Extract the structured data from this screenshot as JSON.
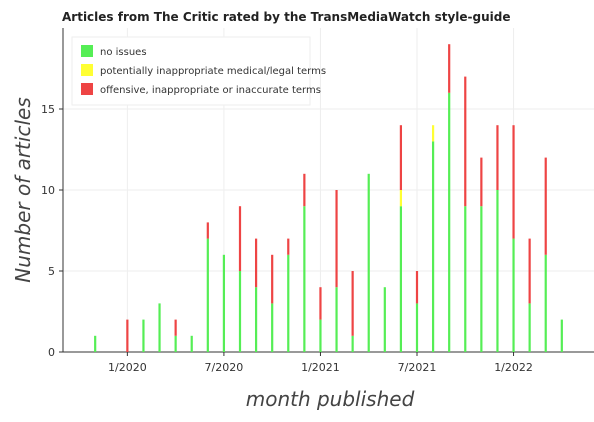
{
  "chart_data": {
    "type": "bar",
    "stacked": true,
    "title": "Articles from The Critic rated by the TransMediaWatch style-guide",
    "xlabel": "month published",
    "ylabel": "Number of articles",
    "ylim": [
      0,
      20
    ],
    "y_ticks": [
      0,
      5,
      10,
      15
    ],
    "x_ticks": [
      {
        "date": "2020-01",
        "label": "1/2020"
      },
      {
        "date": "2020-07",
        "label": "7/2020"
      },
      {
        "date": "2021-01",
        "label": "1/2021"
      },
      {
        "date": "2021-07",
        "label": "7/2021"
      },
      {
        "date": "2022-01",
        "label": "1/2022"
      }
    ],
    "x_range": [
      "2019-09",
      "2022-06"
    ],
    "grid": true,
    "legend_position": "top-left",
    "x": [
      "2019-11",
      "2020-01",
      "2020-02",
      "2020-03",
      "2020-04",
      "2020-05",
      "2020-06",
      "2020-07",
      "2020-08",
      "2020-09",
      "2020-10",
      "2020-11",
      "2020-12",
      "2021-01",
      "2021-02",
      "2021-03",
      "2021-04",
      "2021-05",
      "2021-06",
      "2021-07",
      "2021-08",
      "2021-09",
      "2021-10",
      "2021-11",
      "2021-12",
      "2022-01",
      "2022-02",
      "2022-03",
      "2022-04"
    ],
    "series": [
      {
        "name": "no issues",
        "color": "#55ee55",
        "values": [
          1,
          0,
          2,
          3,
          1,
          1,
          7,
          6,
          5,
          4,
          3,
          6,
          9,
          2,
          4,
          1,
          11,
          4,
          9,
          3,
          13,
          16,
          9,
          9,
          10,
          7,
          3,
          6,
          2
        ]
      },
      {
        "name": "potentially inappropriate medical/legal terms",
        "color": "#ffff33",
        "values": [
          0,
          0,
          0,
          0,
          0,
          0,
          0,
          0,
          0,
          0,
          0,
          0,
          0,
          0,
          0,
          0,
          0,
          0,
          1,
          0,
          1,
          0,
          0,
          0,
          0,
          0,
          0,
          0,
          0
        ]
      },
      {
        "name": "offensive, inappropriate or inaccurate terms",
        "color": "#ee4444",
        "values": [
          0,
          2,
          0,
          0,
          1,
          0,
          1,
          0,
          4,
          3,
          3,
          1,
          2,
          2,
          6,
          4,
          0,
          0,
          4,
          2,
          0,
          3,
          8,
          3,
          4,
          7,
          4,
          6,
          0
        ]
      }
    ]
  }
}
